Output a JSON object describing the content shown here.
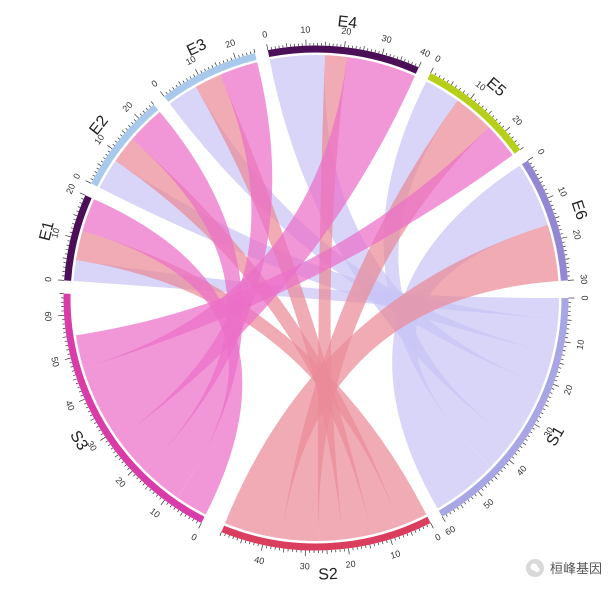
{
  "chart_data": {
    "type": "chord",
    "sectors": [
      {
        "name": "S1",
        "max": 60,
        "color": "#a9a6e6",
        "ticks": [
          0,
          10,
          20,
          30,
          40,
          50,
          60
        ]
      },
      {
        "name": "S2",
        "max": 50,
        "color": "#db3d5e",
        "ticks": [
          0,
          10,
          20,
          30,
          40
        ]
      },
      {
        "name": "S3",
        "max": 65,
        "color": "#d93ba8",
        "ticks": [
          0,
          10,
          20,
          30,
          40,
          50,
          60
        ]
      },
      {
        "name": "E1",
        "max": 20,
        "color": "#4b0f58",
        "ticks": [
          0,
          10,
          20
        ]
      },
      {
        "name": "E2",
        "max": 25,
        "color": "#a9c9ec",
        "ticks": [
          0,
          10,
          20
        ]
      },
      {
        "name": "E3",
        "max": 25,
        "color": "#a9c9ec",
        "ticks": [
          0,
          10,
          20
        ]
      },
      {
        "name": "E4",
        "max": 40,
        "color": "#4b0f58",
        "ticks": [
          0,
          10,
          20,
          30,
          40
        ]
      },
      {
        "name": "E5",
        "max": 25,
        "color": "#b7cf18",
        "ticks": [
          0,
          10,
          20
        ]
      },
      {
        "name": "E6",
        "max": 30,
        "color": "#9387d4",
        "ticks": [
          0,
          10,
          20,
          30
        ]
      }
    ],
    "links": [
      {
        "from": "S1",
        "to": "E1",
        "value": 5
      },
      {
        "from": "S1",
        "to": "E2",
        "value": 8
      },
      {
        "from": "S1",
        "to": "E3",
        "value": 8
      },
      {
        "from": "S1",
        "to": "E4",
        "value": 15
      },
      {
        "from": "S1",
        "to": "E5",
        "value": 8
      },
      {
        "from": "S1",
        "to": "E6",
        "value": 16
      },
      {
        "from": "S2",
        "to": "E1",
        "value": 7
      },
      {
        "from": "S2",
        "to": "E2",
        "value": 7
      },
      {
        "from": "S2",
        "to": "E3",
        "value": 7
      },
      {
        "from": "S2",
        "to": "E4",
        "value": 6
      },
      {
        "from": "S2",
        "to": "E5",
        "value": 9
      },
      {
        "from": "S2",
        "to": "E6",
        "value": 14
      },
      {
        "from": "S3",
        "to": "E1",
        "value": 8
      },
      {
        "from": "S3",
        "to": "E2",
        "value": 10
      },
      {
        "from": "S3",
        "to": "E3",
        "value": 10
      },
      {
        "from": "S3",
        "to": "E4",
        "value": 19
      },
      {
        "from": "S3",
        "to": "E5",
        "value": 8
      }
    ]
  },
  "watermark": {
    "text": "桓峰基因"
  }
}
